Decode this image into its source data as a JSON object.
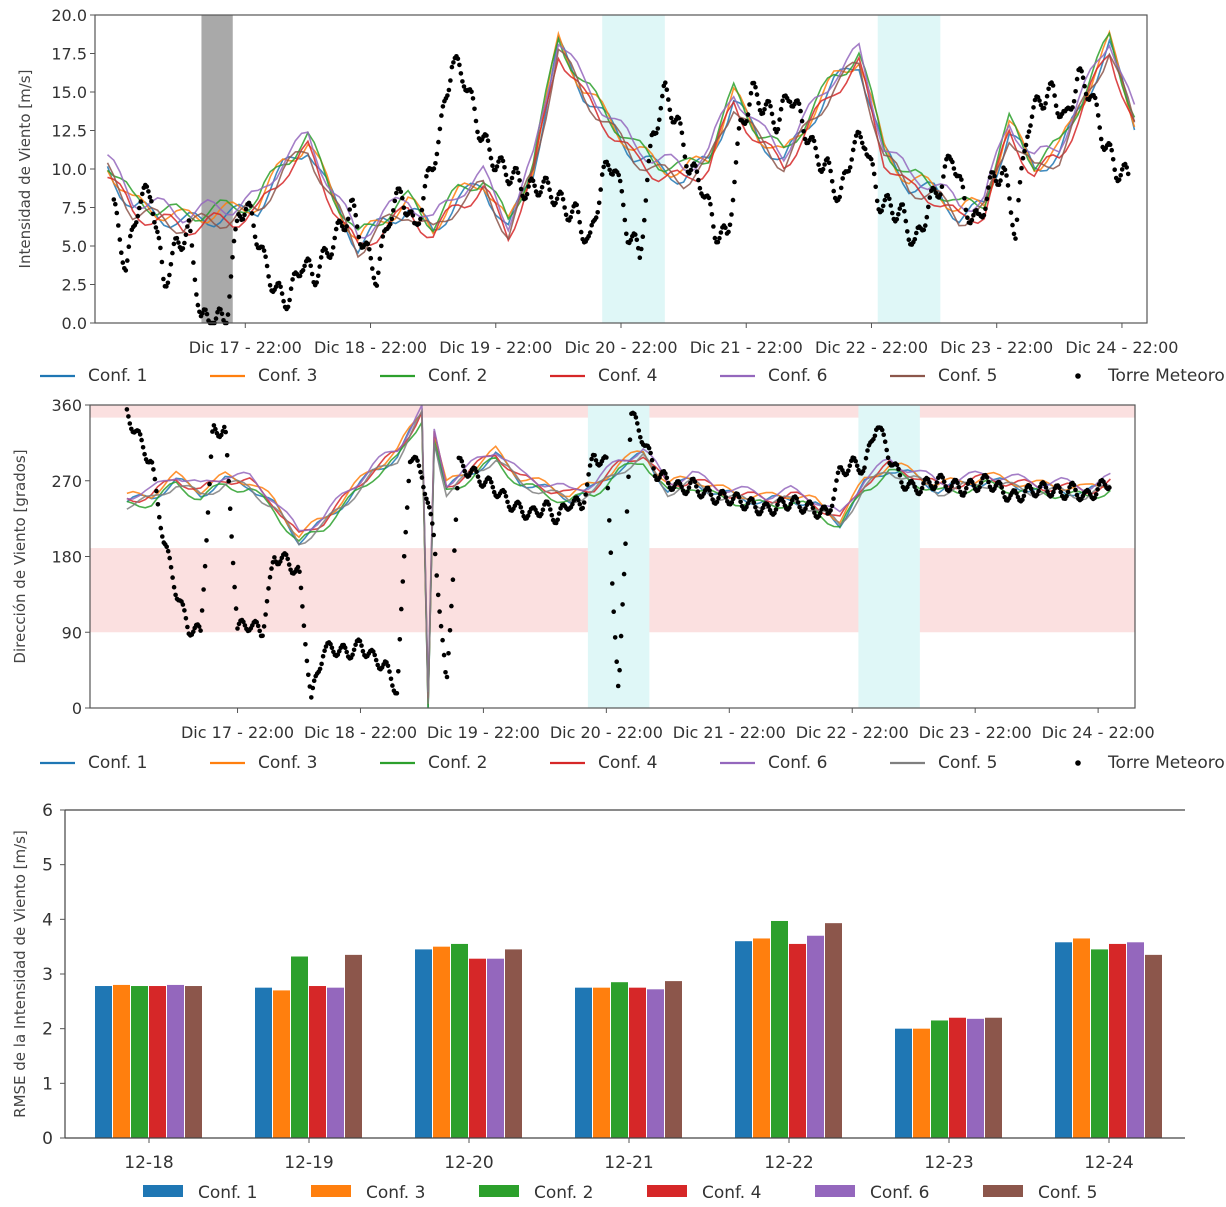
{
  "chart_data": [
    {
      "type": "line",
      "ylabel": "Intensidad de Viento [m/s]",
      "xlabel": "",
      "ylim": [
        0,
        20
      ],
      "yticks": [
        "0.0",
        "2.5",
        "5.0",
        "7.5",
        "10.0",
        "12.5",
        "15.0",
        "17.5",
        "20.0"
      ],
      "xticks": [
        "Dic 17 - 22:00",
        "Dic 18 - 22:00",
        "Dic 19 - 22:00",
        "Dic 20 - 22:00",
        "Dic 21 - 22:00",
        "Dic 22 - 22:00",
        "Dic 23 - 22:00",
        "Dic 24 - 22:00"
      ],
      "x_day_range": [
        16.7,
        25.1
      ],
      "grid": false,
      "legend_position": "below",
      "legend": [
        "Conf. 1",
        "Conf. 3",
        "Conf. 2",
        "Conf. 4",
        "Conf. 6",
        "Conf. 5",
        "Torre Meteorológica"
      ],
      "shaded_regions": [
        {
          "from_day": 17.55,
          "to_day": 17.8,
          "color": "#a9a9a9"
        },
        {
          "from_day": 20.75,
          "to_day": 21.25,
          "color": "#dff7f7"
        },
        {
          "from_day": 22.95,
          "to_day": 23.45,
          "color": "#dff7f7"
        }
      ],
      "model_mean": {
        "day": [
          16.8,
          17.0,
          17.2,
          17.4,
          17.6,
          17.8,
          18.0,
          18.2,
          18.4,
          18.6,
          18.8,
          19.0,
          19.2,
          19.4,
          19.6,
          19.8,
          20.0,
          20.2,
          20.4,
          20.6,
          20.8,
          21.0,
          21.2,
          21.4,
          21.6,
          21.8,
          22.0,
          22.2,
          22.4,
          22.6,
          22.8,
          23.0,
          23.2,
          23.4,
          23.6,
          23.8,
          24.0,
          24.2,
          24.4,
          24.6,
          24.8,
          25.0
        ],
        "value": [
          10,
          7.5,
          7,
          6.5,
          6.8,
          7,
          7.5,
          10,
          11.5,
          8,
          5,
          6.5,
          7.5,
          6,
          8,
          9,
          6,
          10,
          18,
          15,
          13,
          11,
          10,
          9.5,
          10.5,
          14.5,
          12,
          10.5,
          13,
          15.5,
          17,
          11,
          9,
          8.5,
          7,
          7.5,
          12.5,
          10,
          11,
          14.5,
          18,
          13
        ]
      },
      "series": [
        {
          "name": "Conf. 1",
          "color": "#1f77b4",
          "offset": 0.0
        },
        {
          "name": "Conf. 3",
          "color": "#ff7f0e",
          "offset": 0.3
        },
        {
          "name": "Conf. 2",
          "color": "#2ca02c",
          "offset": 0.5
        },
        {
          "name": "Conf. 4",
          "color": "#d62728",
          "offset": -0.3
        },
        {
          "name": "Conf. 6",
          "color": "#9467bd",
          "offset": 0.6
        },
        {
          "name": "Conf. 5",
          "color": "#8c564b",
          "offset": -0.2
        }
      ],
      "observed": {
        "name": "Torre Meteorológica",
        "color": "#000000",
        "day": [
          16.85,
          16.95,
          17.05,
          17.15,
          17.25,
          17.35,
          17.45,
          17.55,
          17.65,
          17.75,
          17.85,
          17.95,
          18.05,
          18.15,
          18.25,
          18.35,
          18.45,
          18.55,
          18.65,
          18.75,
          18.85,
          18.95,
          19.05,
          19.15,
          19.25,
          19.35,
          19.45,
          19.55,
          19.65,
          19.75,
          19.85,
          19.95,
          20.05,
          20.15,
          20.25,
          20.35,
          20.45,
          20.55,
          20.65,
          20.75,
          20.85,
          20.95,
          21.05,
          21.15,
          21.25,
          21.35,
          21.45,
          21.55,
          21.65,
          21.75,
          21.85,
          21.95,
          22.05,
          22.15,
          22.25,
          22.35,
          22.45,
          22.55,
          22.65,
          22.75,
          22.85,
          22.95,
          23.05,
          23.15,
          23.25,
          23.35,
          23.45,
          23.55,
          23.65,
          23.75,
          23.85,
          23.95,
          24.05,
          24.15,
          24.25,
          24.35,
          24.45,
          24.55,
          24.65,
          24.75,
          24.85,
          24.95
        ],
        "value": [
          7.5,
          3.5,
          8,
          8.5,
          2.5,
          5,
          6,
          0.2,
          0.2,
          0.3,
          7.5,
          7,
          4,
          2,
          1.5,
          4,
          3,
          4.5,
          6,
          7.5,
          5,
          3,
          7,
          8.5,
          6,
          9,
          12,
          17,
          16,
          13,
          11,
          10,
          9.5,
          8.5,
          9,
          8.5,
          7.5,
          7,
          5,
          9.5,
          10.5,
          6,
          4.5,
          12,
          15,
          13,
          10,
          9,
          6,
          5.5,
          12.5,
          15,
          14,
          13,
          15,
          13,
          11,
          10,
          8,
          11.5,
          12,
          8,
          7.5,
          7,
          5,
          7.5,
          9,
          11,
          7.5,
          6.5,
          9,
          10,
          6,
          13,
          14.5,
          15,
          13,
          16,
          15,
          12,
          10,
          9.5
        ]
      }
    },
    {
      "type": "line",
      "ylabel": "Dirección de Viento [grados]",
      "xlabel": "",
      "ylim": [
        0,
        360
      ],
      "yticks": [
        "0",
        "90",
        "180",
        "270",
        "360"
      ],
      "xticks": [
        "Dic 17 - 22:00",
        "Dic 18 - 22:00",
        "Dic 19 - 22:00",
        "Dic 20 - 22:00",
        "Dic 21 - 22:00",
        "Dic 22 - 22:00",
        "Dic 23 - 22:00",
        "Dic 24 - 22:00"
      ],
      "x_day_range": [
        16.7,
        25.2
      ],
      "grid": false,
      "legend_position": "below",
      "legend": [
        "Conf. 1",
        "Conf. 3",
        "Conf. 2",
        "Conf. 4",
        "Conf. 6",
        "Conf. 5",
        "Torre Meteorológica"
      ],
      "horizontal_bands": [
        {
          "from": 90,
          "to": 190,
          "color": "#fbe0e0"
        },
        {
          "from": 345,
          "to": 360,
          "color": "#fbe0e0"
        }
      ],
      "shaded_regions": [
        {
          "from_day": 20.75,
          "to_day": 21.25,
          "color": "#dff7f7"
        },
        {
          "from_day": 22.95,
          "to_day": 23.45,
          "color": "#dff7f7"
        }
      ],
      "model_mean": {
        "day": [
          17.0,
          17.2,
          17.4,
          17.6,
          17.8,
          18.0,
          18.2,
          18.4,
          18.6,
          18.8,
          19.0,
          19.2,
          19.4,
          19.45,
          19.5,
          19.6,
          19.8,
          20.0,
          20.2,
          20.4,
          20.6,
          20.8,
          21.0,
          21.2,
          21.4,
          21.6,
          21.8,
          22.0,
          22.2,
          22.4,
          22.6,
          22.8,
          23.0,
          23.2,
          23.4,
          23.6,
          23.8,
          24.0,
          24.2,
          24.4,
          24.6,
          24.8,
          25.0
        ],
        "value": [
          245,
          250,
          270,
          255,
          270,
          265,
          240,
          200,
          220,
          250,
          280,
          300,
          350,
          5,
          320,
          260,
          280,
          300,
          270,
          260,
          250,
          260,
          285,
          300,
          260,
          270,
          255,
          250,
          245,
          250,
          240,
          220,
          265,
          285,
          275,
          260,
          265,
          270,
          265,
          260,
          260,
          255,
          265
        ]
      },
      "series": [
        {
          "name": "Conf. 1",
          "color": "#1f77b4",
          "offset": 0
        },
        {
          "name": "Conf. 3",
          "color": "#ff7f0e",
          "offset": 5
        },
        {
          "name": "Conf. 2",
          "color": "#2ca02c",
          "offset": -5
        },
        {
          "name": "Conf. 4",
          "color": "#d62728",
          "offset": 3
        },
        {
          "name": "Conf. 6",
          "color": "#9467bd",
          "offset": 8
        },
        {
          "name": "Conf. 5",
          "color": "#7f7f7f",
          "offset": -3
        }
      ],
      "observed": {
        "name": "Torre Meteorológica",
        "color": "#000000",
        "day": [
          17.0,
          17.1,
          17.2,
          17.3,
          17.4,
          17.5,
          17.6,
          17.7,
          17.8,
          17.9,
          18.0,
          18.1,
          18.2,
          18.3,
          18.4,
          18.5,
          18.6,
          18.7,
          18.8,
          18.9,
          19.0,
          19.1,
          19.2,
          19.3,
          19.4,
          19.5,
          19.6,
          19.7,
          19.8,
          19.9,
          20.0,
          20.1,
          20.2,
          20.3,
          20.4,
          20.5,
          20.6,
          20.7,
          20.8,
          20.9,
          21.0,
          21.1,
          21.2,
          21.3,
          21.4,
          21.5,
          21.6,
          21.7,
          21.8,
          21.9,
          22.0,
          22.1,
          22.2,
          22.3,
          22.4,
          22.5,
          22.6,
          22.7,
          22.8,
          22.9,
          23.0,
          23.1,
          23.2,
          23.3,
          23.4,
          23.5,
          23.6,
          23.7,
          23.8,
          23.9,
          24.0,
          24.1,
          24.2,
          24.3,
          24.4,
          24.5,
          24.6,
          24.7,
          24.8,
          24.9,
          25.0
        ],
        "value": [
          350,
          320,
          290,
          200,
          140,
          95,
          90,
          330,
          330,
          95,
          100,
          90,
          180,
          175,
          160,
          10,
          70,
          70,
          65,
          75,
          60,
          50,
          20,
          300,
          280,
          200,
          20,
          290,
          280,
          270,
          260,
          245,
          235,
          230,
          240,
          225,
          245,
          240,
          300,
          290,
          10,
          350,
          320,
          280,
          270,
          260,
          265,
          255,
          250,
          250,
          245,
          240,
          235,
          240,
          245,
          240,
          235,
          230,
          280,
          290,
          285,
          340,
          300,
          270,
          260,
          265,
          270,
          265,
          260,
          265,
          270,
          260,
          250,
          255,
          260,
          260,
          255,
          260,
          250,
          260,
          270
        ]
      }
    },
    {
      "type": "bar",
      "ylabel": "RMSE de la Intensidad de Viento [m/s]",
      "xlabel": "",
      "ylim": [
        0,
        6
      ],
      "yticks": [
        "0",
        "1",
        "2",
        "3",
        "4",
        "5",
        "6"
      ],
      "categories": [
        "12-18",
        "12-19",
        "12-20",
        "12-21",
        "12-22",
        "12-23",
        "12-24"
      ],
      "grid": false,
      "legend_position": "below",
      "series": [
        {
          "name": "Conf. 1",
          "color": "#1f77b4",
          "values": [
            2.78,
            2.75,
            3.45,
            2.75,
            3.6,
            2.0,
            3.58
          ]
        },
        {
          "name": "Conf. 3",
          "color": "#ff7f0e",
          "values": [
            2.8,
            2.7,
            3.5,
            2.75,
            3.65,
            2.0,
            3.65
          ]
        },
        {
          "name": "Conf. 2",
          "color": "#2ca02c",
          "values": [
            2.78,
            3.32,
            3.55,
            2.85,
            3.97,
            2.15,
            3.45
          ]
        },
        {
          "name": "Conf. 4",
          "color": "#d62728",
          "values": [
            2.78,
            2.78,
            3.28,
            2.75,
            3.55,
            2.2,
            3.55
          ]
        },
        {
          "name": "Conf. 6",
          "color": "#9467bd",
          "values": [
            2.8,
            2.75,
            3.28,
            2.72,
            3.7,
            2.18,
            3.58
          ]
        },
        {
          "name": "Conf. 5",
          "color": "#8c564b",
          "values": [
            2.78,
            3.35,
            3.45,
            2.87,
            3.93,
            2.2,
            3.35
          ]
        }
      ]
    }
  ]
}
